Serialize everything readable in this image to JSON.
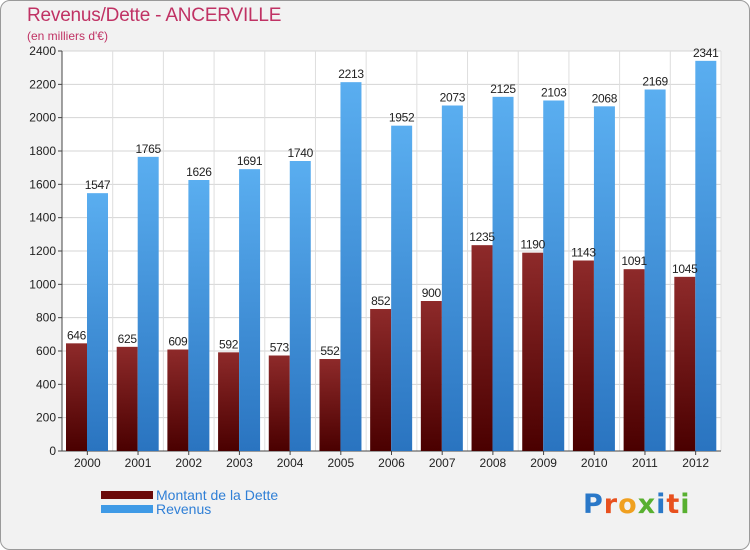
{
  "title": "Revenus/Dette - ANCERVILLE",
  "subtitle": "(en milliers d'€)",
  "logo": {
    "letters": [
      "P",
      "r",
      "o",
      "x",
      "i",
      "t",
      "i"
    ],
    "colors": [
      "#2a78c8",
      "#e8501e",
      "#f0a020",
      "#58b030",
      "#2a78c8",
      "#e8501e",
      "#58b030"
    ]
  },
  "legend": [
    {
      "label": "Montant de la Dette",
      "color": "#6b0a0a"
    },
    {
      "label": "Revenus",
      "color": "#3f9ae6"
    }
  ],
  "chart_data": {
    "type": "bar",
    "title": "Revenus/Dette - ANCERVILLE",
    "subtitle": "(en milliers d'€)",
    "categories": [
      "2000",
      "2001",
      "2002",
      "2003",
      "2004",
      "2005",
      "2006",
      "2007",
      "2008",
      "2009",
      "2010",
      "2011",
      "2012"
    ],
    "series": [
      {
        "name": "Montant de la Dette",
        "color": "#6b0a0a",
        "values": [
          646,
          625,
          609,
          592,
          573,
          552,
          852,
          900,
          1235,
          1190,
          1143,
          1091,
          1045
        ],
        "labels": [
          "646",
          "625",
          "609",
          "592",
          "573",
          "552",
          "852",
          "900",
          "1235",
          "1190",
          "1143",
          "1091",
          "1045"
        ]
      },
      {
        "name": "Revenus",
        "color": "#3f9ae6",
        "values": [
          1547,
          1765,
          1626,
          1691,
          1740,
          2213,
          1952,
          2073,
          2125,
          2103,
          2068,
          2169,
          2341
        ],
        "labels": [
          "1547",
          "1765",
          "1626",
          "1691",
          "1740",
          "2213",
          "1952",
          "2073",
          "2125",
          "2103",
          "2068",
          "2169",
          "2341"
        ]
      }
    ],
    "ylim": [
      0,
      2400
    ],
    "yticks": [
      0,
      200,
      400,
      600,
      800,
      1000,
      1200,
      1400,
      1600,
      1800,
      2000,
      2200,
      2400
    ],
    "ytick_labels": [
      "0",
      "200",
      "400",
      "600",
      "800",
      "1000",
      "1200",
      "1400",
      "1600",
      "1800",
      "2000",
      "2200",
      "2400"
    ],
    "grid": true,
    "legend_position": "bottom-left"
  }
}
